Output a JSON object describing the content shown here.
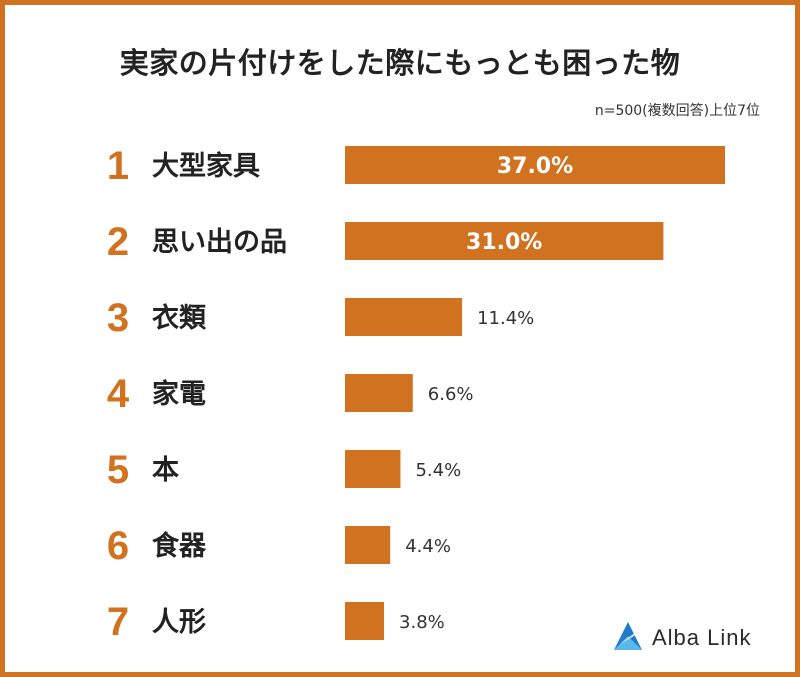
{
  "colors": {
    "accent": "#d07220",
    "text": "#222222",
    "bar_label_inside": "#ffffff"
  },
  "note": "n=500(複数回答)上位7位",
  "brand": {
    "name": "Alba Link",
    "icon": "alba-link-logo-icon"
  },
  "chart_data": {
    "type": "bar",
    "orientation": "horizontal",
    "title": "実家の片付けをした際にもっとも困った物",
    "ranks": [
      "1",
      "2",
      "3",
      "4",
      "5",
      "6",
      "7"
    ],
    "categories": [
      "大型家具",
      "思い出の品",
      "衣類",
      "家電",
      "本",
      "食器",
      "人形"
    ],
    "values": [
      37.0,
      31.0,
      11.4,
      6.6,
      5.4,
      4.4,
      3.8
    ],
    "value_labels": [
      "37.0%",
      "31.0%",
      "11.4%",
      "6.6%",
      "5.4%",
      "4.4%",
      "3.8%"
    ],
    "unit": "%",
    "label_inside_threshold": 20
  }
}
